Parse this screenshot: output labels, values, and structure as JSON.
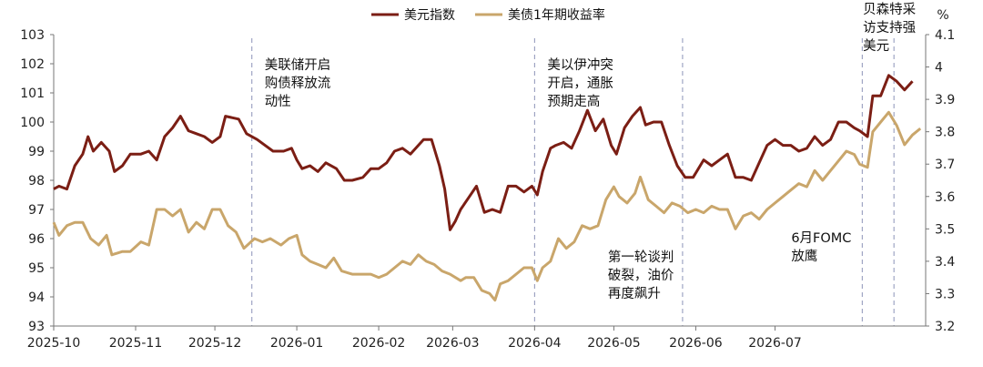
{
  "chart_data": {
    "type": "line",
    "x_type": "date",
    "left_axis": {
      "min": 93,
      "max": 103,
      "ticks": [
        93,
        94,
        95,
        96,
        97,
        98,
        99,
        100,
        101,
        102,
        103
      ]
    },
    "right_axis": {
      "unit": "%",
      "min": 3.2,
      "max": 4.1,
      "ticks": [
        "3.2",
        "3.3",
        "3.4",
        "3.5",
        "3.6",
        "3.7",
        "3.8",
        "3.9",
        "4",
        "4.1"
      ]
    },
    "x_ticks": [
      {
        "date": "2025-10-01",
        "label": "2025-10"
      },
      {
        "date": "2025-11-01",
        "label": "2025-11"
      },
      {
        "date": "2025-12-01",
        "label": "2025-12"
      },
      {
        "date": "2026-01-01",
        "label": "2026-01"
      },
      {
        "date": "2026-02-01",
        "label": "2026-02"
      },
      {
        "date": "2026-03-01",
        "label": "2026-03"
      },
      {
        "date": "2026-04-01",
        "label": "2026-04"
      },
      {
        "date": "2026-05-01",
        "label": "2026-05"
      },
      {
        "date": "2026-06-01",
        "label": "2026-06"
      },
      {
        "date": "2026-07-01",
        "label": "2026-07"
      }
    ],
    "series": [
      {
        "name": "美元指数",
        "axis": "left",
        "color": "#7B1E14",
        "points": [
          [
            "2025-10-01",
            97.7
          ],
          [
            "2025-10-03",
            97.8
          ],
          [
            "2025-10-06",
            97.7
          ],
          [
            "2025-10-09",
            98.5
          ],
          [
            "2025-10-12",
            98.9
          ],
          [
            "2025-10-14",
            99.5
          ],
          [
            "2025-10-16",
            99.0
          ],
          [
            "2025-10-19",
            99.3
          ],
          [
            "2025-10-22",
            99.0
          ],
          [
            "2025-10-24",
            98.3
          ],
          [
            "2025-10-27",
            98.5
          ],
          [
            "2025-10-30",
            98.9
          ],
          [
            "2025-11-03",
            98.9
          ],
          [
            "2025-11-06",
            99.0
          ],
          [
            "2025-11-09",
            98.7
          ],
          [
            "2025-11-12",
            99.5
          ],
          [
            "2025-11-15",
            99.8
          ],
          [
            "2025-11-18",
            100.2
          ],
          [
            "2025-11-21",
            99.7
          ],
          [
            "2025-11-24",
            99.6
          ],
          [
            "2025-11-27",
            99.5
          ],
          [
            "2025-11-30",
            99.3
          ],
          [
            "2025-12-03",
            99.5
          ],
          [
            "2025-12-05",
            100.2
          ],
          [
            "2025-12-10",
            100.1
          ],
          [
            "2025-12-13",
            99.6
          ],
          [
            "2025-12-17",
            99.4
          ],
          [
            "2025-12-20",
            99.2
          ],
          [
            "2025-12-23",
            99.0
          ],
          [
            "2025-12-27",
            99.0
          ],
          [
            "2025-12-30",
            99.1
          ],
          [
            "2026-01-01",
            98.7
          ],
          [
            "2026-01-03",
            98.4
          ],
          [
            "2026-01-06",
            98.5
          ],
          [
            "2026-01-09",
            98.3
          ],
          [
            "2026-01-12",
            98.6
          ],
          [
            "2026-01-16",
            98.4
          ],
          [
            "2026-01-19",
            98.0
          ],
          [
            "2026-01-22",
            98.0
          ],
          [
            "2026-01-26",
            98.1
          ],
          [
            "2026-01-29",
            98.4
          ],
          [
            "2026-02-01",
            98.4
          ],
          [
            "2026-02-04",
            98.6
          ],
          [
            "2026-02-07",
            99.0
          ],
          [
            "2026-02-10",
            99.1
          ],
          [
            "2026-02-13",
            98.9
          ],
          [
            "2026-02-16",
            99.2
          ],
          [
            "2026-02-18",
            99.4
          ],
          [
            "2026-02-21",
            99.4
          ],
          [
            "2026-02-24",
            98.5
          ],
          [
            "2026-02-26",
            97.7
          ],
          [
            "2026-02-28",
            96.3
          ],
          [
            "2026-03-02",
            96.6
          ],
          [
            "2026-03-04",
            97.0
          ],
          [
            "2026-03-07",
            97.4
          ],
          [
            "2026-03-10",
            97.8
          ],
          [
            "2026-03-13",
            96.9
          ],
          [
            "2026-03-16",
            97.0
          ],
          [
            "2026-03-19",
            96.9
          ],
          [
            "2026-03-22",
            97.8
          ],
          [
            "2026-03-25",
            97.8
          ],
          [
            "2026-03-28",
            97.6
          ],
          [
            "2026-03-31",
            97.8
          ],
          [
            "2026-04-02",
            97.5
          ],
          [
            "2026-04-04",
            98.3
          ],
          [
            "2026-04-07",
            99.1
          ],
          [
            "2026-04-09",
            99.2
          ],
          [
            "2026-04-12",
            99.3
          ],
          [
            "2026-04-15",
            99.1
          ],
          [
            "2026-04-18",
            99.7
          ],
          [
            "2026-04-21",
            100.4
          ],
          [
            "2026-04-24",
            99.7
          ],
          [
            "2026-04-27",
            100.1
          ],
          [
            "2026-04-30",
            99.2
          ],
          [
            "2026-05-02",
            98.9
          ],
          [
            "2026-05-05",
            99.8
          ],
          [
            "2026-05-08",
            100.2
          ],
          [
            "2026-05-11",
            100.5
          ],
          [
            "2026-05-13",
            99.9
          ],
          [
            "2026-05-16",
            100.0
          ],
          [
            "2026-05-19",
            100.0
          ],
          [
            "2026-05-22",
            99.2
          ],
          [
            "2026-05-25",
            98.5
          ],
          [
            "2026-05-28",
            98.1
          ],
          [
            "2026-05-31",
            98.1
          ],
          [
            "2026-06-04",
            98.7
          ],
          [
            "2026-06-07",
            98.5
          ],
          [
            "2026-06-10",
            98.7
          ],
          [
            "2026-06-13",
            98.9
          ],
          [
            "2026-06-16",
            98.1
          ],
          [
            "2026-06-19",
            98.1
          ],
          [
            "2026-06-22",
            98.0
          ],
          [
            "2026-06-25",
            98.6
          ],
          [
            "2026-06-28",
            99.2
          ],
          [
            "2026-07-01",
            99.4
          ],
          [
            "2026-07-04",
            99.2
          ],
          [
            "2026-07-07",
            99.2
          ],
          [
            "2026-07-10",
            99.0
          ],
          [
            "2026-07-13",
            99.1
          ],
          [
            "2026-07-16",
            99.5
          ],
          [
            "2026-07-19",
            99.2
          ],
          [
            "2026-07-22",
            99.4
          ],
          [
            "2026-07-25",
            100.0
          ],
          [
            "2026-07-28",
            100.0
          ],
          [
            "2026-07-31",
            99.8
          ],
          [
            "2026-08-02",
            99.7
          ],
          [
            "2026-08-05",
            99.5
          ],
          [
            "2026-08-07",
            100.9
          ],
          [
            "2026-08-10",
            100.9
          ],
          [
            "2026-08-13",
            101.6
          ],
          [
            "2026-08-16",
            101.4
          ],
          [
            "2026-08-19",
            101.1
          ],
          [
            "2026-08-22",
            101.4
          ]
        ]
      },
      {
        "name": "美债1年期收益率",
        "axis": "right",
        "color": "#C9A66B",
        "points": [
          [
            "2025-10-01",
            3.52
          ],
          [
            "2025-10-03",
            3.48
          ],
          [
            "2025-10-06",
            3.51
          ],
          [
            "2025-10-09",
            3.52
          ],
          [
            "2025-10-12",
            3.52
          ],
          [
            "2025-10-15",
            3.47
          ],
          [
            "2025-10-18",
            3.45
          ],
          [
            "2025-10-21",
            3.48
          ],
          [
            "2025-10-23",
            3.42
          ],
          [
            "2025-10-27",
            3.43
          ],
          [
            "2025-10-30",
            3.43
          ],
          [
            "2025-11-03",
            3.46
          ],
          [
            "2025-11-06",
            3.45
          ],
          [
            "2025-11-09",
            3.56
          ],
          [
            "2025-11-12",
            3.56
          ],
          [
            "2025-11-15",
            3.54
          ],
          [
            "2025-11-18",
            3.56
          ],
          [
            "2025-11-21",
            3.49
          ],
          [
            "2025-11-24",
            3.52
          ],
          [
            "2025-11-27",
            3.5
          ],
          [
            "2025-11-30",
            3.56
          ],
          [
            "2025-12-03",
            3.56
          ],
          [
            "2025-12-06",
            3.51
          ],
          [
            "2025-12-09",
            3.49
          ],
          [
            "2025-12-12",
            3.44
          ],
          [
            "2025-12-16",
            3.47
          ],
          [
            "2025-12-19",
            3.46
          ],
          [
            "2025-12-22",
            3.47
          ],
          [
            "2025-12-26",
            3.45
          ],
          [
            "2025-12-29",
            3.47
          ],
          [
            "2026-01-01",
            3.48
          ],
          [
            "2026-01-03",
            3.42
          ],
          [
            "2026-01-06",
            3.4
          ],
          [
            "2026-01-09",
            3.39
          ],
          [
            "2026-01-12",
            3.38
          ],
          [
            "2026-01-15",
            3.41
          ],
          [
            "2026-01-18",
            3.37
          ],
          [
            "2026-01-22",
            3.36
          ],
          [
            "2026-01-26",
            3.36
          ],
          [
            "2026-01-29",
            3.36
          ],
          [
            "2026-02-01",
            3.35
          ],
          [
            "2026-02-04",
            3.36
          ],
          [
            "2026-02-07",
            3.38
          ],
          [
            "2026-02-10",
            3.4
          ],
          [
            "2026-02-13",
            3.39
          ],
          [
            "2026-02-16",
            3.42
          ],
          [
            "2026-02-19",
            3.4
          ],
          [
            "2026-02-22",
            3.39
          ],
          [
            "2026-02-25",
            3.37
          ],
          [
            "2026-02-28",
            3.36
          ],
          [
            "2026-03-04",
            3.34
          ],
          [
            "2026-03-06",
            3.35
          ],
          [
            "2026-03-09",
            3.35
          ],
          [
            "2026-03-12",
            3.31
          ],
          [
            "2026-03-15",
            3.3
          ],
          [
            "2026-03-17",
            3.28
          ],
          [
            "2026-03-19",
            3.33
          ],
          [
            "2026-03-22",
            3.34
          ],
          [
            "2026-03-25",
            3.36
          ],
          [
            "2026-03-28",
            3.38
          ],
          [
            "2026-03-31",
            3.38
          ],
          [
            "2026-04-02",
            3.34
          ],
          [
            "2026-04-04",
            3.38
          ],
          [
            "2026-04-07",
            3.4
          ],
          [
            "2026-04-10",
            3.47
          ],
          [
            "2026-04-13",
            3.44
          ],
          [
            "2026-04-16",
            3.46
          ],
          [
            "2026-04-19",
            3.51
          ],
          [
            "2026-04-22",
            3.5
          ],
          [
            "2026-04-25",
            3.51
          ],
          [
            "2026-04-28",
            3.59
          ],
          [
            "2026-05-01",
            3.63
          ],
          [
            "2026-05-03",
            3.6
          ],
          [
            "2026-05-06",
            3.58
          ],
          [
            "2026-05-09",
            3.61
          ],
          [
            "2026-05-11",
            3.66
          ],
          [
            "2026-05-14",
            3.59
          ],
          [
            "2026-05-17",
            3.57
          ],
          [
            "2026-05-20",
            3.55
          ],
          [
            "2026-05-23",
            3.58
          ],
          [
            "2026-05-26",
            3.57
          ],
          [
            "2026-05-29",
            3.55
          ],
          [
            "2026-06-01",
            3.56
          ],
          [
            "2026-06-04",
            3.55
          ],
          [
            "2026-06-07",
            3.57
          ],
          [
            "2026-06-10",
            3.56
          ],
          [
            "2026-06-13",
            3.56
          ],
          [
            "2026-06-16",
            3.5
          ],
          [
            "2026-06-19",
            3.54
          ],
          [
            "2026-06-22",
            3.55
          ],
          [
            "2026-06-25",
            3.53
          ],
          [
            "2026-06-28",
            3.56
          ],
          [
            "2026-07-01",
            3.58
          ],
          [
            "2026-07-04",
            3.6
          ],
          [
            "2026-07-07",
            3.62
          ],
          [
            "2026-07-10",
            3.64
          ],
          [
            "2026-07-13",
            3.63
          ],
          [
            "2026-07-16",
            3.68
          ],
          [
            "2026-07-19",
            3.65
          ],
          [
            "2026-07-22",
            3.68
          ],
          [
            "2026-07-25",
            3.71
          ],
          [
            "2026-07-28",
            3.74
          ],
          [
            "2026-07-31",
            3.73
          ],
          [
            "2026-08-02",
            3.7
          ],
          [
            "2026-08-05",
            3.69
          ],
          [
            "2026-08-07",
            3.8
          ],
          [
            "2026-08-10",
            3.83
          ],
          [
            "2026-08-13",
            3.86
          ],
          [
            "2026-08-16",
            3.82
          ],
          [
            "2026-08-19",
            3.76
          ],
          [
            "2026-08-22",
            3.79
          ],
          [
            "2026-08-25",
            3.81
          ]
        ]
      }
    ],
    "event_lines": [
      {
        "date": "2025-12-15",
        "label_lines": [
          "美联储开启",
          "购债释放流",
          "动性"
        ],
        "label_pos": "top"
      },
      {
        "date": "2026-04-01",
        "label_lines": [
          "美以伊冲突",
          "开启，通胀",
          "预期走高"
        ],
        "label_pos": "top"
      },
      {
        "date": "2026-05-27",
        "label_lines": [
          "第一轮谈判",
          "破裂，油价",
          "再度飙升"
        ],
        "label_pos": "bottom"
      },
      {
        "date": "2026-08-03",
        "label_lines": [
          "6月FOMC",
          "放鹰"
        ],
        "label_pos": "bottom"
      },
      {
        "date": "2026-08-15",
        "label_lines": [
          "贝森特采",
          "访支持强",
          "美元"
        ],
        "label_pos": "top"
      }
    ],
    "legend_position": "top-center",
    "grid": false
  }
}
